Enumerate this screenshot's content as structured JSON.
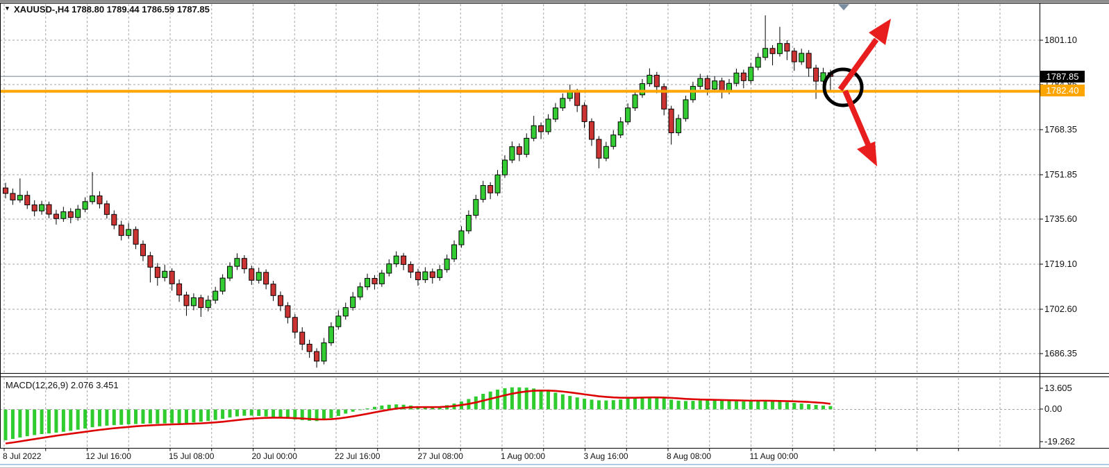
{
  "window": {
    "title_line": "XAUUSD-,H4  1788.80 1789.44 1786.59 1787.85",
    "symbol": "XAUUSD",
    "timeframe": "H4",
    "ohlc_display": {
      "open": "1788.80",
      "high": "1789.44",
      "low": "1786.59",
      "close": "1787.85"
    },
    "dropdown_icon": "▼"
  },
  "indicator_label": "MACD(12,26,9) 2.076 3.451",
  "price_axis": {
    "labels": [
      "1801.10",
      "1784.85",
      "1768.35",
      "1751.85",
      "1735.60",
      "1719.10",
      "1702.60",
      "1686.35"
    ],
    "bid_tag": "1787.85",
    "level_tag": "1782.40"
  },
  "macd_axis": {
    "labels": [
      "13.605",
      "0.00",
      "-19.262"
    ]
  },
  "time_axis": {
    "labels": [
      "8 Jul 2022",
      "12 Jul 16:00",
      "15 Jul 08:00",
      "20 Jul 00:00",
      "22 Jul 16:00",
      "27 Jul 08:00",
      "1 Aug 00:00",
      "3 Aug 16:00",
      "8 Aug 08:00",
      "11 Aug 00:00"
    ]
  },
  "annotations": {
    "circle": "highlight-circle-at-current-price",
    "arrow_up": "red-arrow-breakout-up",
    "arrow_down": "red-arrow-breakout-down",
    "shift_marker": "chart-shift-triangle",
    "horizontal_level": 1782.4,
    "bid_price": 1787.85
  },
  "colors": {
    "bull": "#33CC33",
    "bear": "#CC3333",
    "wick": "#000000",
    "grid": "#A3A3A3",
    "bid_line": "#8293A3",
    "level_line": "#FFA500",
    "macd_hist": "#2ECC2E",
    "macd_signal": "#DD0000",
    "arrow_red": "#E81E1E",
    "shift_gray": "#7B8DA0"
  },
  "chart_data": {
    "type": "candlestick",
    "symbol": "XAUUSD",
    "timeframe": "H4",
    "price_range_labels": [
      1686.35,
      1801.1
    ],
    "levels": {
      "orange_line": 1782.4,
      "bid_line": 1787.85
    },
    "ohlc": [
      [
        1747.0,
        1748.9,
        1743.2,
        1745.0
      ],
      [
        1745.0,
        1746.8,
        1740.8,
        1742.6
      ],
      [
        1742.6,
        1750.5,
        1741.6,
        1744.3
      ],
      [
        1744.3,
        1745.9,
        1739.3,
        1740.8
      ],
      [
        1740.8,
        1742.5,
        1736.6,
        1738.6
      ],
      [
        1738.6,
        1742.3,
        1737.2,
        1740.9
      ],
      [
        1740.9,
        1742.0,
        1735.9,
        1737.4
      ],
      [
        1737.4,
        1739.0,
        1733.6,
        1735.8
      ],
      [
        1735.8,
        1740.1,
        1734.6,
        1738.3
      ],
      [
        1738.3,
        1739.6,
        1734.1,
        1736.2
      ],
      [
        1736.2,
        1740.8,
        1735.0,
        1739.2
      ],
      [
        1739.2,
        1743.6,
        1738.1,
        1742.0
      ],
      [
        1742.0,
        1752.8,
        1741.0,
        1744.1
      ],
      [
        1744.1,
        1745.8,
        1739.5,
        1741.2
      ],
      [
        1741.2,
        1742.4,
        1735.8,
        1737.3
      ],
      [
        1737.3,
        1738.8,
        1731.9,
        1733.4
      ],
      [
        1733.4,
        1735.0,
        1727.8,
        1729.6
      ],
      [
        1729.6,
        1734.2,
        1728.4,
        1731.8
      ],
      [
        1731.8,
        1732.9,
        1724.6,
        1726.4
      ],
      [
        1726.4,
        1727.8,
        1720.2,
        1722.2
      ],
      [
        1722.2,
        1723.6,
        1712.4,
        1718.0
      ],
      [
        1718.0,
        1719.5,
        1711.2,
        1714.2
      ],
      [
        1714.2,
        1718.9,
        1712.8,
        1716.5
      ],
      [
        1716.5,
        1717.6,
        1709.4,
        1711.9
      ],
      [
        1711.9,
        1713.5,
        1705.3,
        1707.8
      ],
      [
        1707.8,
        1709.0,
        1700.2,
        1703.9
      ],
      [
        1703.9,
        1708.4,
        1702.2,
        1706.8
      ],
      [
        1706.8,
        1707.9,
        1699.8,
        1703.2
      ],
      [
        1703.2,
        1707.6,
        1701.8,
        1705.9
      ],
      [
        1705.9,
        1710.8,
        1704.6,
        1709.2
      ],
      [
        1709.2,
        1715.4,
        1708.0,
        1714.0
      ],
      [
        1714.0,
        1719.8,
        1712.9,
        1718.3
      ],
      [
        1718.3,
        1723.1,
        1717.0,
        1721.2
      ],
      [
        1721.2,
        1722.4,
        1715.7,
        1717.4
      ],
      [
        1717.4,
        1718.6,
        1711.5,
        1713.2
      ],
      [
        1713.2,
        1717.8,
        1712.0,
        1716.1
      ],
      [
        1716.1,
        1717.2,
        1709.9,
        1711.8
      ],
      [
        1711.8,
        1713.0,
        1705.6,
        1707.6
      ],
      [
        1707.6,
        1709.1,
        1701.9,
        1703.9
      ],
      [
        1703.9,
        1705.2,
        1697.4,
        1699.6
      ],
      [
        1699.6,
        1700.8,
        1692.0,
        1694.2
      ],
      [
        1694.2,
        1696.0,
        1687.6,
        1689.8
      ],
      [
        1689.8,
        1691.4,
        1684.8,
        1687.1
      ],
      [
        1687.1,
        1688.3,
        1681.2,
        1683.6
      ],
      [
        1683.6,
        1692.1,
        1682.4,
        1690.3
      ],
      [
        1690.3,
        1697.8,
        1689.2,
        1696.2
      ],
      [
        1696.2,
        1702.2,
        1695.1,
        1700.1
      ],
      [
        1700.1,
        1705.0,
        1698.8,
        1703.2
      ],
      [
        1703.2,
        1708.9,
        1702.1,
        1707.1
      ],
      [
        1707.1,
        1712.4,
        1706.0,
        1710.8
      ],
      [
        1710.8,
        1715.6,
        1709.6,
        1713.9
      ],
      [
        1713.9,
        1715.1,
        1709.8,
        1711.9
      ],
      [
        1711.9,
        1717.0,
        1710.8,
        1715.8
      ],
      [
        1715.8,
        1720.9,
        1714.6,
        1719.2
      ],
      [
        1719.2,
        1723.8,
        1718.0,
        1722.1
      ],
      [
        1722.1,
        1723.2,
        1716.9,
        1719.0
      ],
      [
        1719.0,
        1720.1,
        1714.0,
        1716.2
      ],
      [
        1716.2,
        1717.4,
        1711.2,
        1713.4
      ],
      [
        1713.4,
        1718.0,
        1712.2,
        1716.3
      ],
      [
        1716.3,
        1717.5,
        1712.0,
        1714.2
      ],
      [
        1714.2,
        1718.8,
        1713.0,
        1717.1
      ],
      [
        1717.1,
        1722.6,
        1716.0,
        1721.0
      ],
      [
        1721.0,
        1727.8,
        1719.9,
        1726.2
      ],
      [
        1726.2,
        1733.0,
        1725.1,
        1731.3
      ],
      [
        1731.3,
        1738.8,
        1730.2,
        1737.0
      ],
      [
        1737.0,
        1744.5,
        1735.9,
        1742.8
      ],
      [
        1742.8,
        1749.6,
        1741.7,
        1747.9
      ],
      [
        1747.9,
        1749.1,
        1742.9,
        1745.2
      ],
      [
        1745.2,
        1753.6,
        1744.1,
        1751.8
      ],
      [
        1751.8,
        1759.0,
        1750.7,
        1757.2
      ],
      [
        1757.2,
        1764.0,
        1756.1,
        1762.1
      ],
      [
        1762.1,
        1763.3,
        1756.8,
        1759.3
      ],
      [
        1759.3,
        1767.0,
        1758.2,
        1765.2
      ],
      [
        1765.2,
        1773.4,
        1764.1,
        1769.8
      ],
      [
        1769.8,
        1771.0,
        1764.9,
        1767.6
      ],
      [
        1767.6,
        1774.0,
        1766.5,
        1772.2
      ],
      [
        1772.2,
        1778.1,
        1771.1,
        1776.3
      ],
      [
        1776.3,
        1781.6,
        1775.2,
        1779.8
      ],
      [
        1779.8,
        1784.9,
        1778.7,
        1782.1
      ],
      [
        1782.1,
        1783.3,
        1774.8,
        1777.2
      ],
      [
        1777.2,
        1778.4,
        1768.9,
        1771.3
      ],
      [
        1771.3,
        1772.5,
        1762.4,
        1764.8
      ],
      [
        1764.8,
        1766.0,
        1754.2,
        1757.9
      ],
      [
        1757.9,
        1763.9,
        1756.8,
        1762.2
      ],
      [
        1762.2,
        1768.1,
        1761.1,
        1766.4
      ],
      [
        1766.4,
        1772.9,
        1765.3,
        1771.2
      ],
      [
        1771.2,
        1778.0,
        1770.1,
        1776.3
      ],
      [
        1776.3,
        1782.8,
        1775.2,
        1781.1
      ],
      [
        1781.1,
        1786.9,
        1780.0,
        1785.2
      ],
      [
        1785.2,
        1790.8,
        1784.1,
        1788.3
      ],
      [
        1788.3,
        1789.5,
        1781.7,
        1784.1
      ],
      [
        1784.1,
        1785.3,
        1773.6,
        1775.9
      ],
      [
        1775.9,
        1777.1,
        1762.9,
        1767.2
      ],
      [
        1767.2,
        1773.9,
        1766.1,
        1772.4
      ],
      [
        1772.4,
        1780.8,
        1771.3,
        1779.3
      ],
      [
        1779.3,
        1785.9,
        1778.2,
        1784.2
      ],
      [
        1784.2,
        1788.8,
        1783.1,
        1787.1
      ],
      [
        1787.1,
        1788.3,
        1780.9,
        1783.2
      ],
      [
        1783.2,
        1787.9,
        1782.1,
        1786.2
      ],
      [
        1786.2,
        1787.4,
        1779.8,
        1782.4
      ],
      [
        1782.4,
        1786.9,
        1781.3,
        1785.3
      ],
      [
        1785.3,
        1790.7,
        1784.2,
        1789.1
      ],
      [
        1789.1,
        1790.3,
        1783.5,
        1786.3
      ],
      [
        1786.3,
        1792.8,
        1785.2,
        1791.2
      ],
      [
        1791.2,
        1796.4,
        1790.1,
        1794.8
      ],
      [
        1794.8,
        1810.2,
        1793.7,
        1798.1
      ],
      [
        1798.1,
        1799.3,
        1791.9,
        1796.2
      ],
      [
        1796.2,
        1806.0,
        1795.1,
        1799.9
      ],
      [
        1799.9,
        1801.1,
        1793.8,
        1797.1
      ],
      [
        1797.1,
        1798.3,
        1789.9,
        1793.2
      ],
      [
        1793.2,
        1798.0,
        1792.1,
        1796.3
      ],
      [
        1796.3,
        1797.5,
        1787.7,
        1790.9
      ],
      [
        1790.9,
        1792.1,
        1779.6,
        1786.1
      ],
      [
        1786.1,
        1791.0,
        1784.0,
        1789.2
      ],
      [
        1789.2,
        1790.3,
        1782.9,
        1787.85
      ]
    ],
    "macd_histogram": [
      -19.0,
      -18.2,
      -17.3,
      -16.5,
      -15.8,
      -15.2,
      -14.8,
      -14.3,
      -13.8,
      -13.2,
      -12.5,
      -11.8,
      -11.0,
      -10.4,
      -10.0,
      -9.7,
      -9.5,
      -9.2,
      -9.0,
      -8.8,
      -8.7,
      -8.8,
      -8.6,
      -8.5,
      -8.6,
      -8.4,
      -8.0,
      -7.6,
      -7.1,
      -6.5,
      -5.8,
      -5.0,
      -4.3,
      -3.9,
      -3.8,
      -4.0,
      -4.4,
      -4.9,
      -5.4,
      -5.8,
      -6.2,
      -6.6,
      -7.0,
      -7.2,
      -6.5,
      -5.3,
      -4.0,
      -2.6,
      -1.4,
      -0.4,
      0.6,
      1.6,
      2.4,
      2.9,
      3.1,
      2.9,
      2.4,
      1.9,
      1.6,
      1.6,
      1.9,
      2.6,
      3.6,
      4.9,
      6.4,
      8.0,
      9.6,
      11.0,
      12.2,
      13.1,
      13.6,
      13.6,
      13.4,
      12.9,
      12.2,
      11.3,
      10.3,
      9.3,
      8.3,
      7.4,
      6.6,
      6.0,
      5.6,
      5.5,
      5.7,
      6.1,
      6.7,
      7.3,
      7.7,
      7.8,
      7.5,
      6.8,
      6.0,
      5.4,
      5.2,
      5.3,
      5.5,
      5.7,
      5.7,
      5.5,
      5.2,
      5.0,
      4.9,
      5.0,
      5.2,
      5.3,
      5.1,
      4.8,
      4.4,
      4.0,
      3.6,
      3.2,
      2.8,
      2.4,
      2.076
    ],
    "macd_signal": [
      -21.0,
      -20.4,
      -19.7,
      -19.0,
      -18.3,
      -17.6,
      -16.9,
      -16.2,
      -15.6,
      -15.0,
      -14.4,
      -13.8,
      -13.2,
      -12.6,
      -12.1,
      -11.6,
      -11.2,
      -10.8,
      -10.4,
      -10.1,
      -9.8,
      -9.6,
      -9.4,
      -9.2,
      -9.1,
      -8.9,
      -8.8,
      -8.6,
      -8.3,
      -8.0,
      -7.6,
      -7.1,
      -6.6,
      -6.1,
      -5.7,
      -5.4,
      -5.2,
      -5.1,
      -5.1,
      -5.2,
      -5.4,
      -5.6,
      -5.9,
      -6.1,
      -6.2,
      -6.0,
      -5.6,
      -5.0,
      -4.3,
      -3.5,
      -2.7,
      -1.8,
      -1.0,
      -0.2,
      0.5,
      1.0,
      1.3,
      1.4,
      1.4,
      1.4,
      1.5,
      1.7,
      2.1,
      2.7,
      3.4,
      4.3,
      5.4,
      6.5,
      7.6,
      8.7,
      9.7,
      10.5,
      11.1,
      11.5,
      11.6,
      11.6,
      11.4,
      11.0,
      10.5,
      9.9,
      9.3,
      8.7,
      8.1,
      7.7,
      7.4,
      7.2,
      7.2,
      7.2,
      7.3,
      7.4,
      7.4,
      7.3,
      7.1,
      6.8,
      6.5,
      6.3,
      6.1,
      6.0,
      5.9,
      5.8,
      5.7,
      5.6,
      5.5,
      5.4,
      5.4,
      5.4,
      5.3,
      5.2,
      5.1,
      5.0,
      4.8,
      4.6,
      4.3,
      4.0,
      3.451
    ]
  }
}
